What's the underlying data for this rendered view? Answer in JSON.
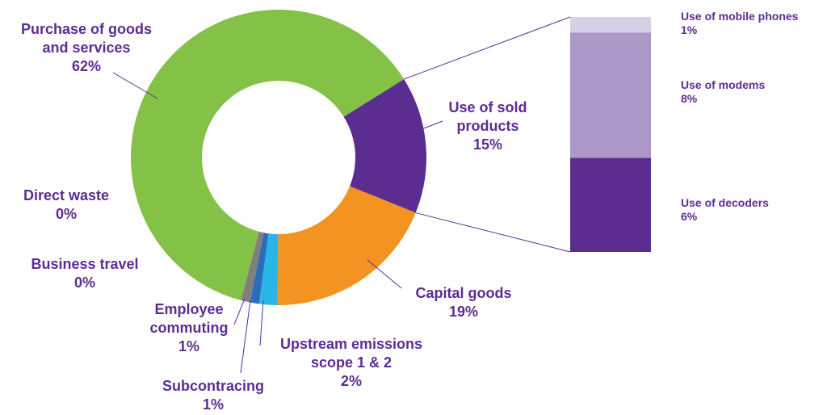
{
  "chart_data": [
    {
      "type": "donut",
      "categories": [
        "Use of sold products",
        "Capital goods",
        "Upstream emissions scope 1 & 2",
        "Subcontracing",
        "Employee commuting",
        "Business travel",
        "Direct waste",
        "Purchase of goods and services"
      ],
      "values": [
        15,
        19,
        2,
        1,
        1,
        0,
        0,
        62
      ],
      "value_labels": [
        "15%",
        "19%",
        "2%",
        "1%",
        "1%",
        "0%",
        "0%",
        "62%"
      ],
      "colors": [
        "#5c2d91",
        "#f39322",
        "#29b5e8",
        "#2a6ebb",
        "#7f7f7f",
        "#9e9e9e",
        "#8a8a8a",
        "#84c147"
      ]
    },
    {
      "type": "bar",
      "categories": [
        "Use of mobile phones",
        "Use of modems",
        "Use of decoders"
      ],
      "values": [
        1,
        8,
        6
      ],
      "value_labels": [
        "1%",
        "8%",
        "6%"
      ],
      "colors": [
        "#d9d0e8",
        "#ac98c8",
        "#5c2d91"
      ]
    }
  ]
}
